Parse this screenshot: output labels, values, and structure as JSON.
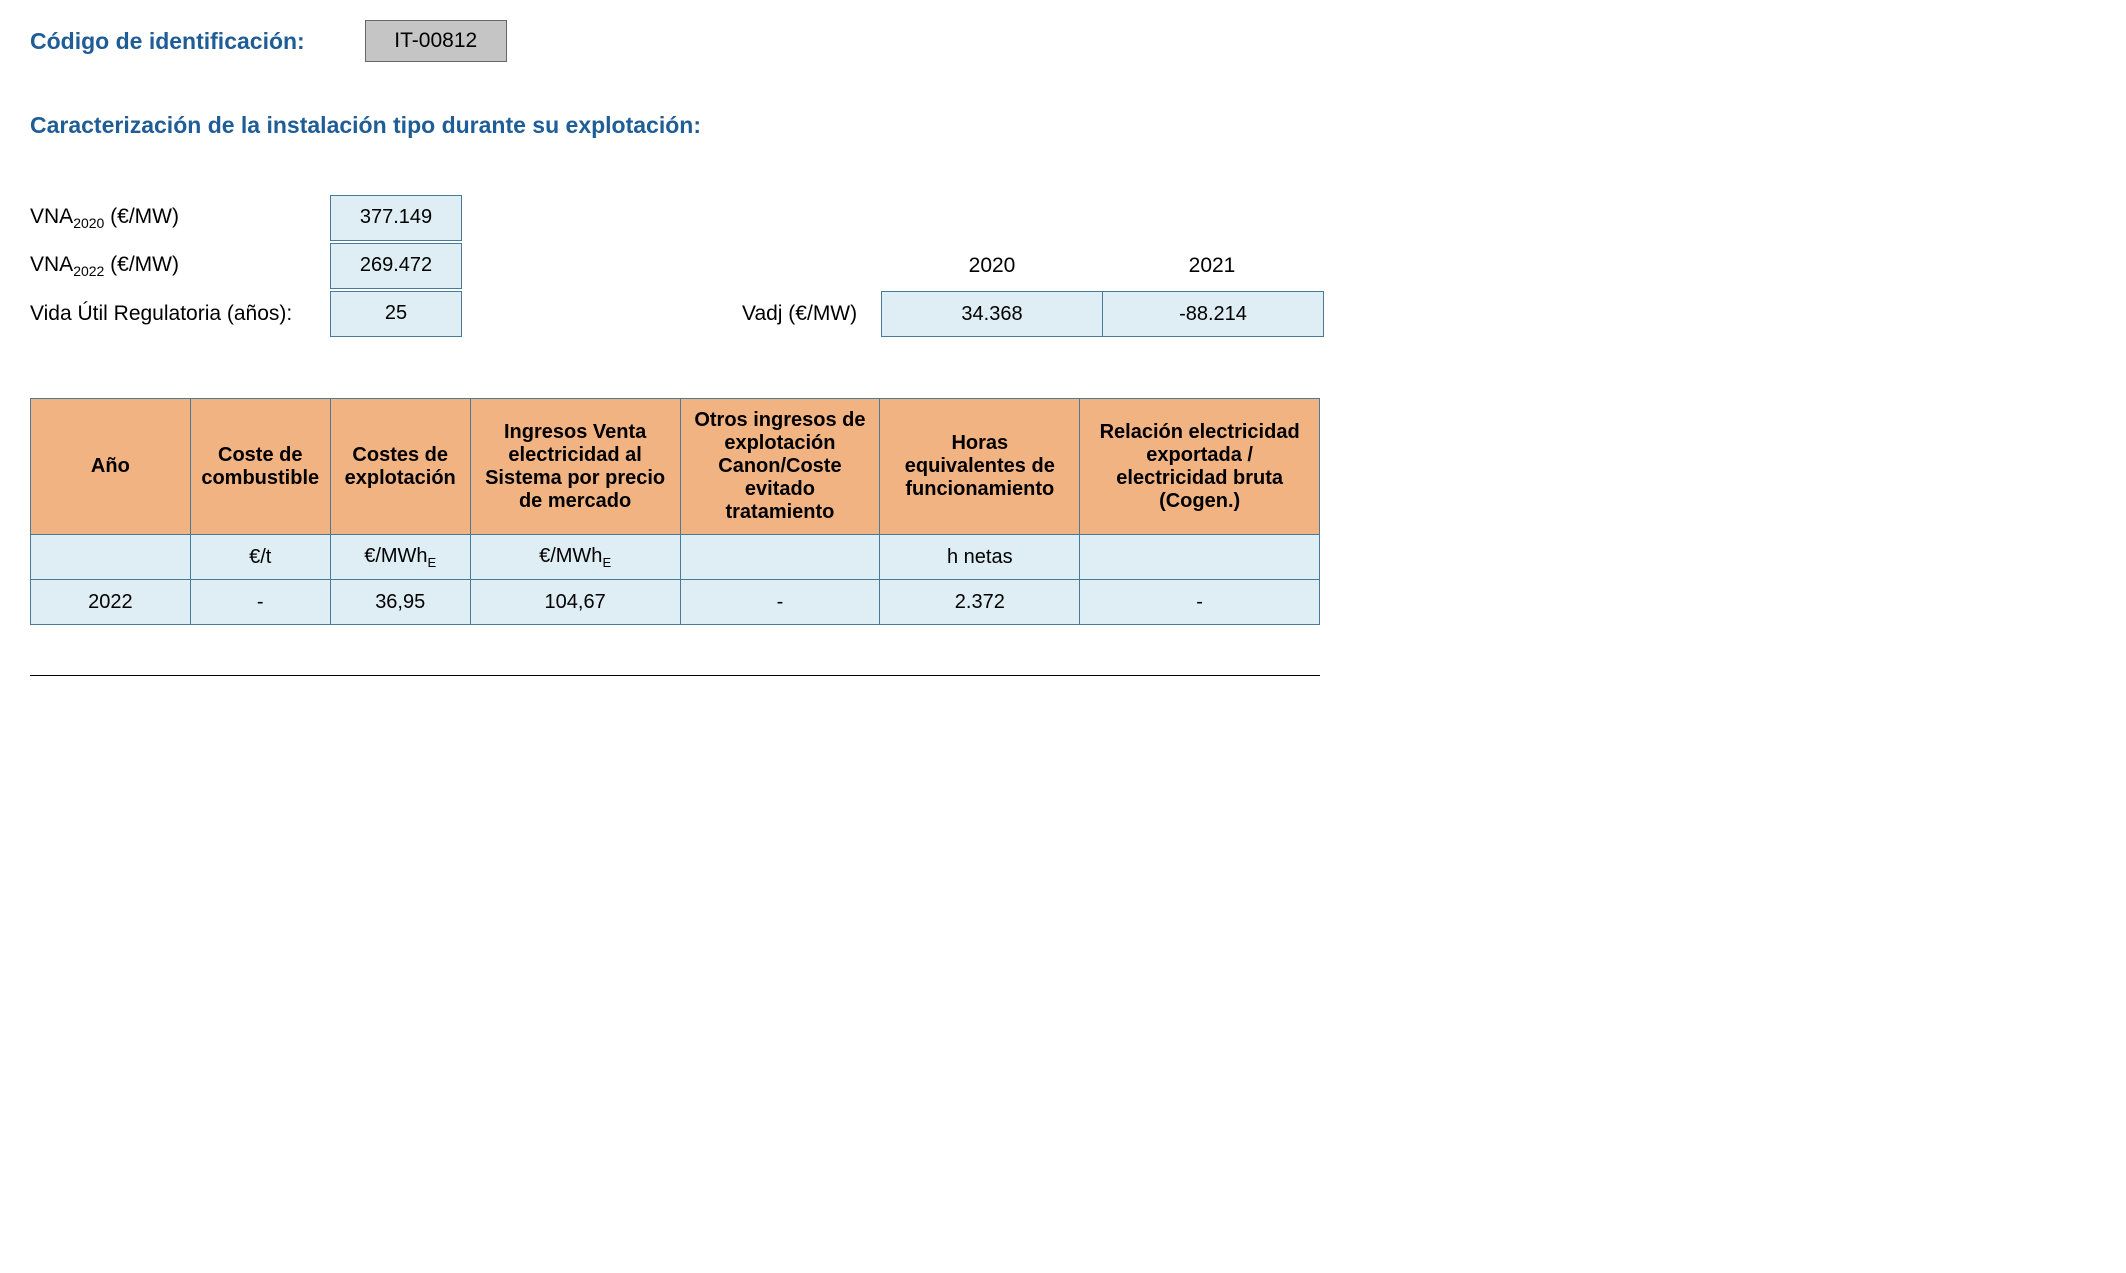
{
  "header": {
    "code_label": "Código de identificación:",
    "code_value": "IT-00812"
  },
  "section_title": "Caracterización de la instalación tipo durante su explotación:",
  "params": {
    "vna2020_label_prefix": "VNA",
    "vna2020_label_sub": "2020",
    "vna2020_label_suffix": " (€/MW)",
    "vna2020_value": "377.149",
    "vna2022_label_prefix": "VNA",
    "vna2022_label_sub": "2022",
    "vna2022_label_suffix": " (€/MW)",
    "vna2022_value": "269.472",
    "vida_label": "Vida Útil Regulatoria (años):",
    "vida_value": "25"
  },
  "vadj": {
    "label": "Vadj (€/MW)",
    "year1_header": "2020",
    "year2_header": "2021",
    "year1_value": "34.368",
    "year2_value": "-88.214"
  },
  "table": {
    "headers": {
      "c1": "Año",
      "c2": "Coste de combustible",
      "c3": "Costes de explotación",
      "c4": "Ingresos Venta electricidad al Sistema por precio de mercado",
      "c5": "Otros ingresos de explotación Canon/Coste evitado tratamiento",
      "c6": "Horas equivalentes de funcionamiento",
      "c7": "Relación electricidad exportada / electricidad bruta (Cogen.)"
    },
    "units": {
      "c1": "",
      "c2": "€/t",
      "c3_prefix": "€/MWh",
      "c3_sub": "E",
      "c4_prefix": "€/MWh",
      "c4_sub": "E",
      "c5": "",
      "c6": "h netas",
      "c7": ""
    },
    "row": {
      "c1": "2022",
      "c2": "-",
      "c3": "36,95",
      "c4": "104,67",
      "c5": "-",
      "c6": "2.372",
      "c7": "-"
    },
    "col_widths": {
      "c1": "160px",
      "c2": "140px",
      "c3": "140px",
      "c4": "210px",
      "c5": "200px",
      "c6": "200px",
      "c7": "240px"
    },
    "colors": {
      "header_bg": "#f2b382",
      "cell_bg": "#deeef4",
      "border": "#4a7a9a",
      "heading_text": "#1f5d96"
    }
  }
}
